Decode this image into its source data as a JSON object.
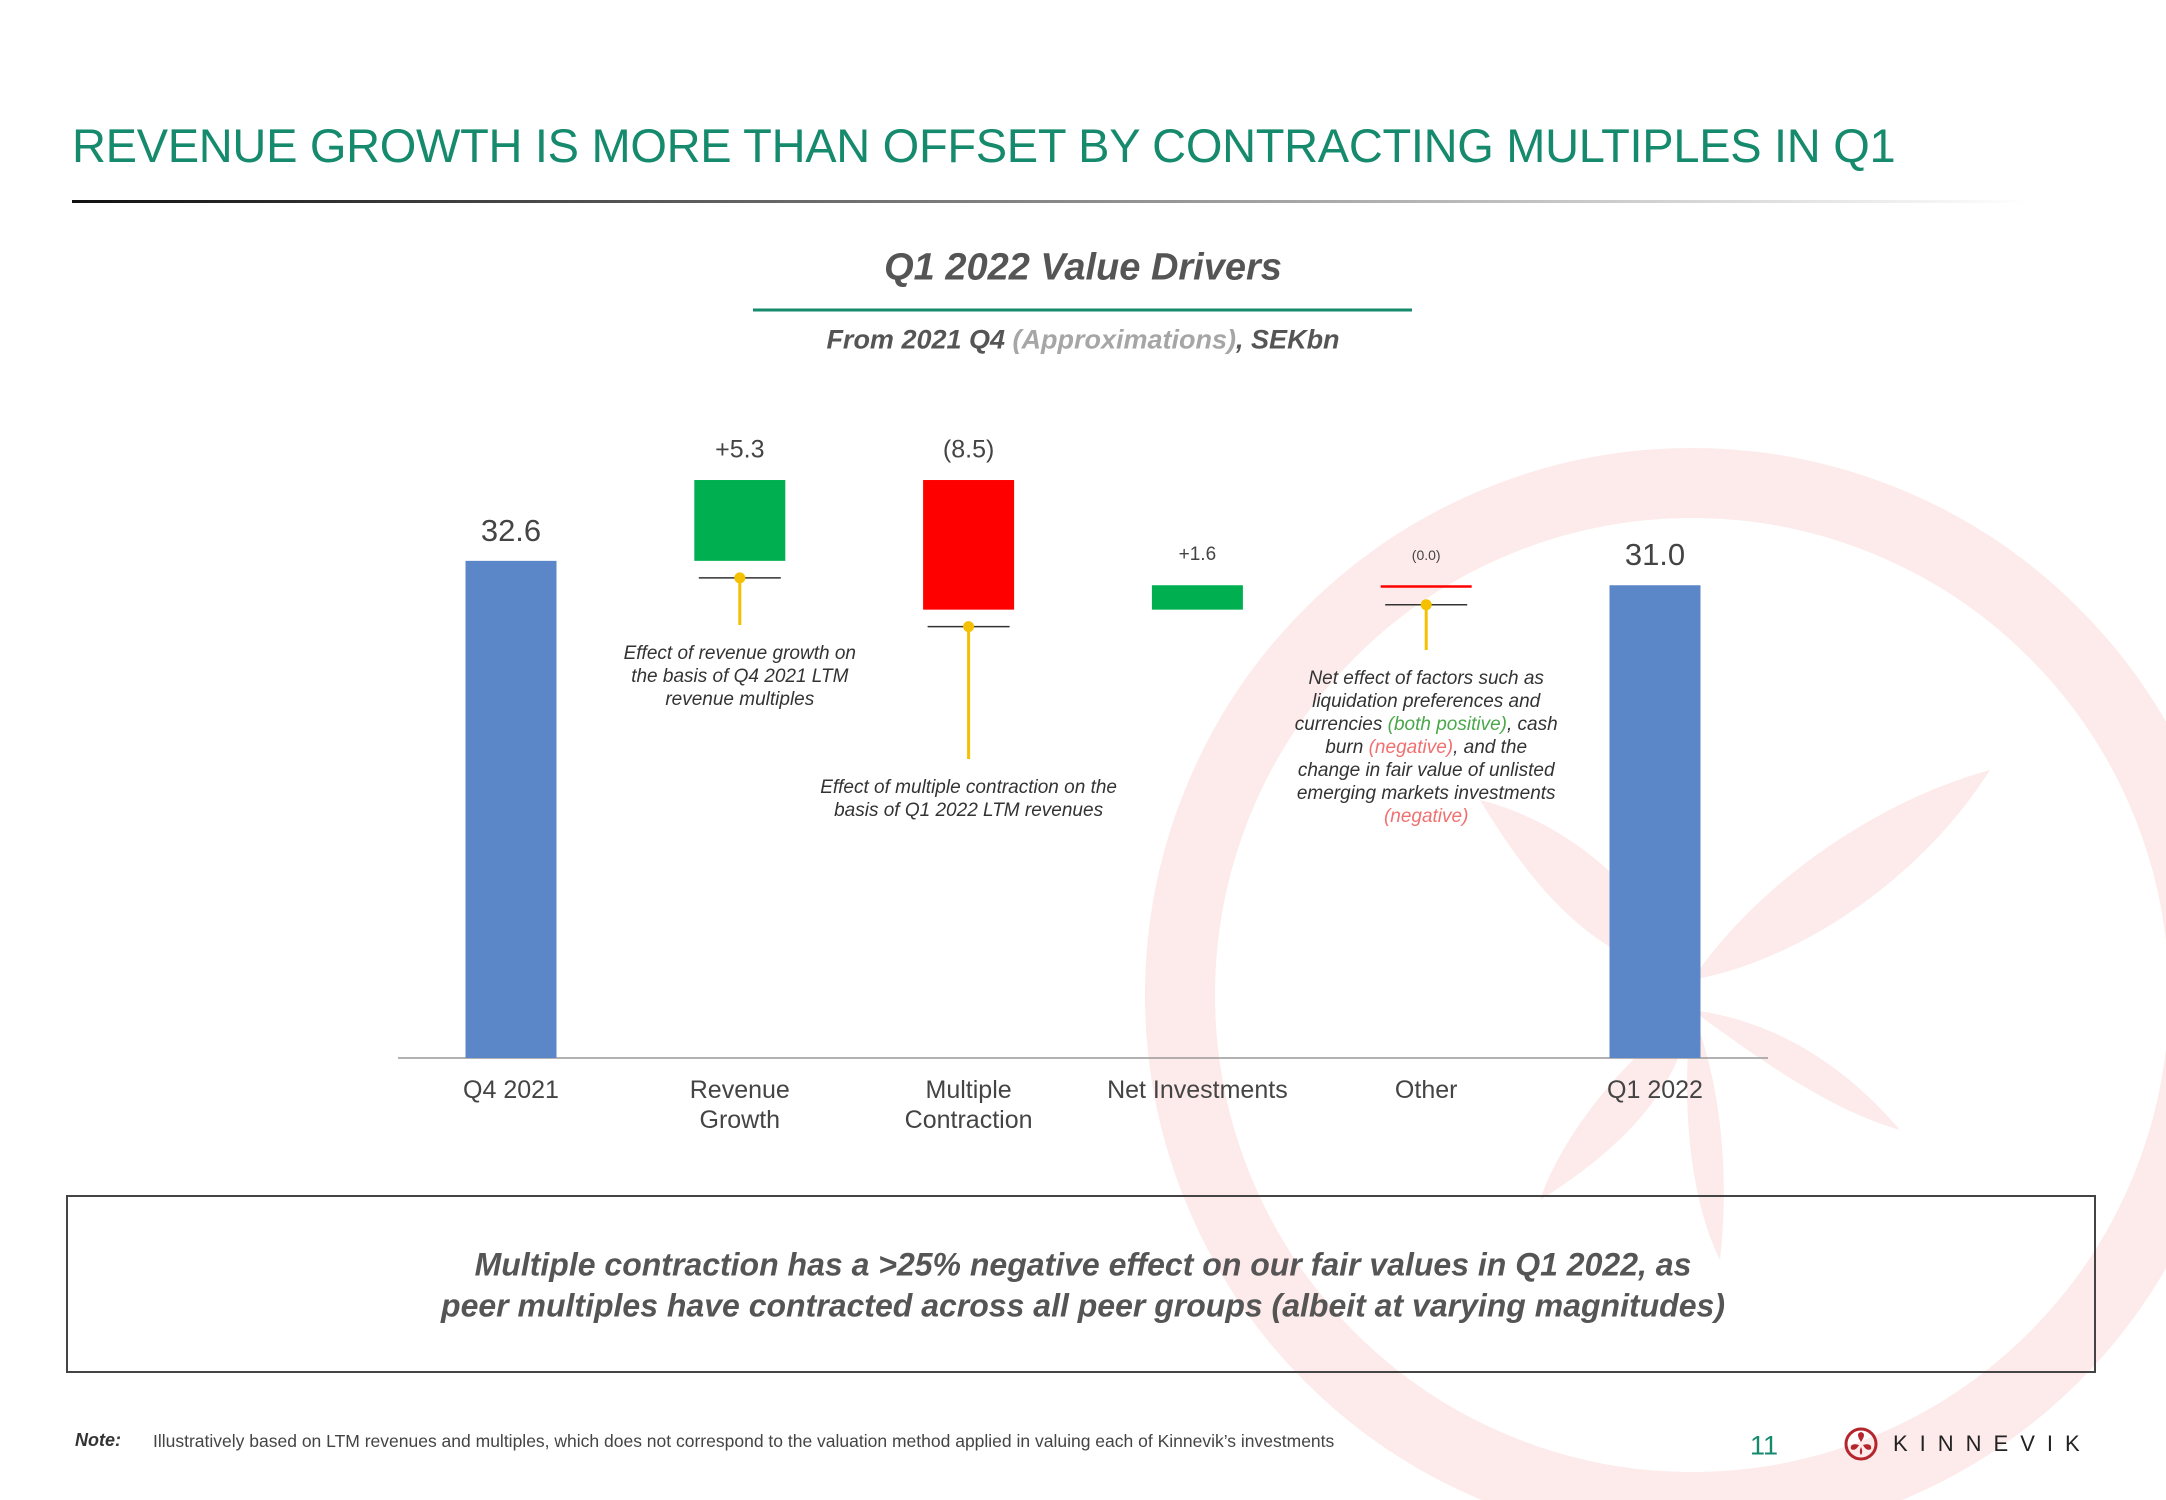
{
  "header": {
    "title": "REVENUE GROWTH IS MORE THAN OFFSET BY CONTRACTING MULTIPLES IN Q1",
    "color": "#168a6c"
  },
  "chart_data": {
    "type": "waterfall",
    "title": "Q1 2022 Value Drivers",
    "subtitle": [
      {
        "text": "From 2021 Q4 "
      },
      {
        "text": "(Approximations)",
        "color": "#a6a6a6"
      },
      {
        "text": ", SEKbn"
      }
    ],
    "categories": [
      "Q4 2021",
      "Revenue Growth",
      "Multiple Contraction",
      "Net Investments",
      "Other",
      "Q1 2022"
    ],
    "measure": [
      "absolute",
      "relative",
      "relative",
      "relative",
      "relative",
      "absolute"
    ],
    "values": [
      32.6,
      5.3,
      -8.5,
      1.6,
      0,
      31.0
    ],
    "value_labels": [
      "32.6",
      "+5.3",
      "(8.5)",
      "+1.6",
      "(0.0)",
      "31.0"
    ],
    "colors": {
      "total": "#5b87c9",
      "increase": "#00b050",
      "decrease": "#ff0000"
    },
    "ylim": [
      0,
      38
    ],
    "annotations": [
      {
        "segments": [
          {
            "text": "Effect of revenue growth on the basis of Q4 2021 LTM revenue multiples"
          }
        ]
      },
      {
        "segments": [
          {
            "text": "Effect of multiple contraction on the basis of Q1 2022 LTM revenues"
          }
        ]
      },
      {
        "segments": [
          {
            "text": "Net effect of factors such as liquidation preferences and currencies "
          },
          {
            "text": "(both positive)",
            "color": "#4aa84a"
          },
          {
            "text": ", cash burn "
          },
          {
            "text": "(negative)",
            "color": "#f07070"
          },
          {
            "text": ", and the change in fair value of unlisted emerging markets investments "
          },
          {
            "text": "(negative)",
            "color": "#f07070"
          }
        ]
      }
    ]
  },
  "summary": {
    "lines": [
      "Multiple contraction has a >25% negative effect on our fair values in Q1 2022, as",
      "peer multiples have contracted across all peer groups (albeit at varying magnitudes)"
    ]
  },
  "footer": {
    "note_label": "Note:",
    "note": "Illustratively based on LTM revenues and multiples, which does not correspond to the valuation method applied in valuing each of Kinnevik’s investments",
    "page_number": "11",
    "logo": "KINNEVIK"
  }
}
